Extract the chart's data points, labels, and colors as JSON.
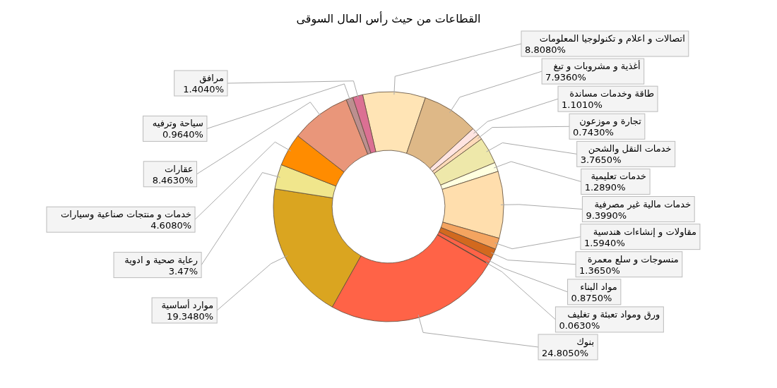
{
  "chart_data": {
    "type": "donut",
    "title": "القطاعات من حيث رأس المال السوقى",
    "categories": [
      "اتصالات و  اعلام و تكنولوجيا المعلومات",
      "أغذية و مشروبات و تبغ",
      "طاقة وخدمات مساندة",
      "تجارة و موزعون",
      "خدمات النقل والشحن",
      "خدمات تعليمية",
      "خدمات مالية غير مصرفية",
      "مقاولات و إنشاءات هندسية",
      "منسوجات و سلع معمرة",
      "مواد البناء",
      "ورق ومواد تعبئة و تغليف",
      "بنوك",
      "موارد أساسية",
      "رعاية صحية و ادوية",
      "خدمات و منتجات صناعية وسيارات",
      "عقارات",
      "سياحة وترفيه",
      "مرافق"
    ],
    "values": [
      8.808,
      7.936,
      1.101,
      0.743,
      3.765,
      1.289,
      9.399,
      1.594,
      1.365,
      0.875,
      0.063,
      24.805,
      19.348,
      3.47,
      4.608,
      8.463,
      0.964,
      1.404
    ],
    "value_labels": [
      "8.8080%",
      "7.9360%",
      "1.1010%",
      "0.7430%",
      "3.7650%",
      "1.2890%",
      "9.3990%",
      "1.5940%",
      "1.3650%",
      "0.8750%",
      "0.0630%",
      "24.8050%",
      "19.3480%",
      "3.47%",
      "4.6080%",
      "8.4630%",
      "0.9640%",
      "1.4040%"
    ],
    "colors": [
      "#ffe4b5",
      "#deb887",
      "#ffe4e1",
      "#ffdab9",
      "#eee8aa",
      "#ffffe0",
      "#ffdead",
      "#f4a460",
      "#d2691e",
      "#ff6347",
      "#8b3a1a",
      "#ff6347",
      "#daa520",
      "#f0e68c",
      "#ff8c00",
      "#e9967a",
      "#bc8f8f",
      "#db7093"
    ]
  }
}
